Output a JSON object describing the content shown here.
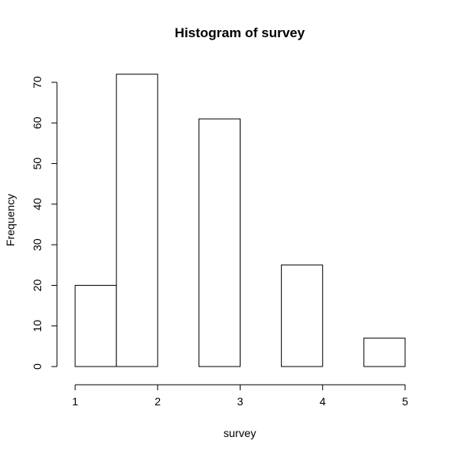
{
  "chart_data": {
    "type": "bar",
    "subtype": "histogram",
    "title": "Histogram of survey",
    "xlabel": "survey",
    "ylabel": "Frequency",
    "bins": [
      {
        "start": 1.0,
        "end": 1.5,
        "count": 20
      },
      {
        "start": 1.5,
        "end": 2.0,
        "count": 72
      },
      {
        "start": 2.0,
        "end": 2.5,
        "count": 0
      },
      {
        "start": 2.5,
        "end": 3.0,
        "count": 61
      },
      {
        "start": 3.0,
        "end": 3.5,
        "count": 0
      },
      {
        "start": 3.5,
        "end": 4.0,
        "count": 25
      },
      {
        "start": 4.0,
        "end": 4.5,
        "count": 0
      },
      {
        "start": 4.5,
        "end": 5.0,
        "count": 7
      }
    ],
    "xlim": [
      1,
      5
    ],
    "ylim": [
      0,
      72
    ],
    "x_ticks": [
      "1",
      "2",
      "3",
      "4",
      "5"
    ],
    "y_ticks": [
      "0",
      "10",
      "20",
      "30",
      "40",
      "50",
      "60",
      "70"
    ],
    "grid": false,
    "bar_fill": "#ffffff",
    "bar_stroke": "#000000"
  }
}
